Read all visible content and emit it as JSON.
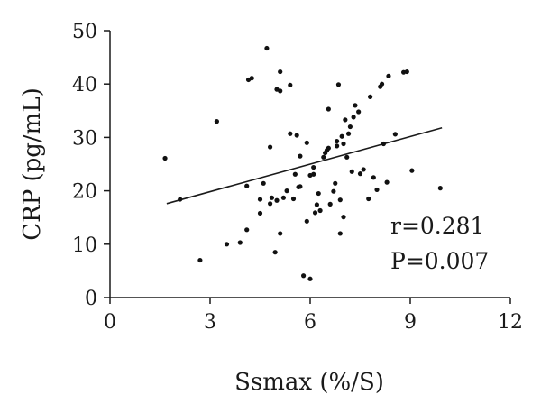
{
  "chart_data": {
    "type": "scatter",
    "xlabel": "Ssmax (%/S)",
    "ylabel": "CRP (pg/mL)",
    "xlim": [
      0,
      12
    ],
    "ylim": [
      0,
      50
    ],
    "xticks": [
      0,
      3,
      6,
      9,
      12
    ],
    "yticks": [
      0,
      10,
      20,
      30,
      40,
      50
    ],
    "grid": false,
    "annotations": [
      "r=0.281",
      "P=0.007"
    ],
    "trendline": {
      "x": [
        1.7,
        9.95
      ],
      "y": [
        17.6,
        31.8
      ]
    },
    "points": [
      [
        1.65,
        26.1
      ],
      [
        2.1,
        18.4
      ],
      [
        2.7,
        7.0
      ],
      [
        3.2,
        33.0
      ],
      [
        3.5,
        10.0
      ],
      [
        3.9,
        10.3
      ],
      [
        4.1,
        12.7
      ],
      [
        4.1,
        20.9
      ],
      [
        4.15,
        40.8
      ],
      [
        4.25,
        41.1
      ],
      [
        4.5,
        15.8
      ],
      [
        4.5,
        18.4
      ],
      [
        4.6,
        21.4
      ],
      [
        4.7,
        46.7
      ],
      [
        4.8,
        17.6
      ],
      [
        4.8,
        28.2
      ],
      [
        4.85,
        18.7
      ],
      [
        4.95,
        8.5
      ],
      [
        5.0,
        39.0
      ],
      [
        5.0,
        18.2
      ],
      [
        5.1,
        42.3
      ],
      [
        5.1,
        38.7
      ],
      [
        5.1,
        12.0
      ],
      [
        5.2,
        18.7
      ],
      [
        5.3,
        20.0
      ],
      [
        5.4,
        30.7
      ],
      [
        5.4,
        39.8
      ],
      [
        5.5,
        18.5
      ],
      [
        5.55,
        23.1
      ],
      [
        5.6,
        30.4
      ],
      [
        5.65,
        20.7
      ],
      [
        5.7,
        26.5
      ],
      [
        5.7,
        20.8
      ],
      [
        5.8,
        4.1
      ],
      [
        5.9,
        29.0
      ],
      [
        5.9,
        14.3
      ],
      [
        6.0,
        22.9
      ],
      [
        6.0,
        3.5
      ],
      [
        6.1,
        23.1
      ],
      [
        6.1,
        24.4
      ],
      [
        6.15,
        15.9
      ],
      [
        6.2,
        17.4
      ],
      [
        6.25,
        19.5
      ],
      [
        6.3,
        16.3
      ],
      [
        6.4,
        26.3
      ],
      [
        6.45,
        27.1
      ],
      [
        6.5,
        27.6
      ],
      [
        6.55,
        35.3
      ],
      [
        6.55,
        28.0
      ],
      [
        6.6,
        17.5
      ],
      [
        6.7,
        19.9
      ],
      [
        6.75,
        21.4
      ],
      [
        6.8,
        28.4
      ],
      [
        6.8,
        29.3
      ],
      [
        6.85,
        39.9
      ],
      [
        6.9,
        12.0
      ],
      [
        6.9,
        18.3
      ],
      [
        6.95,
        30.2
      ],
      [
        7.0,
        15.1
      ],
      [
        7.0,
        28.8
      ],
      [
        7.05,
        33.3
      ],
      [
        7.1,
        26.3
      ],
      [
        7.15,
        30.7
      ],
      [
        7.2,
        32.0
      ],
      [
        7.25,
        23.6
      ],
      [
        7.3,
        33.8
      ],
      [
        7.35,
        36.0
      ],
      [
        7.45,
        34.8
      ],
      [
        7.5,
        23.2
      ],
      [
        7.6,
        24.0
      ],
      [
        7.75,
        18.5
      ],
      [
        7.8,
        37.6
      ],
      [
        7.9,
        22.5
      ],
      [
        8.0,
        20.2
      ],
      [
        8.1,
        39.5
      ],
      [
        8.15,
        40.0
      ],
      [
        8.2,
        28.8
      ],
      [
        8.35,
        41.5
      ],
      [
        8.3,
        21.6
      ],
      [
        8.55,
        30.6
      ],
      [
        8.8,
        42.2
      ],
      [
        8.9,
        42.3
      ],
      [
        9.05,
        23.8
      ],
      [
        9.9,
        20.5
      ]
    ]
  }
}
